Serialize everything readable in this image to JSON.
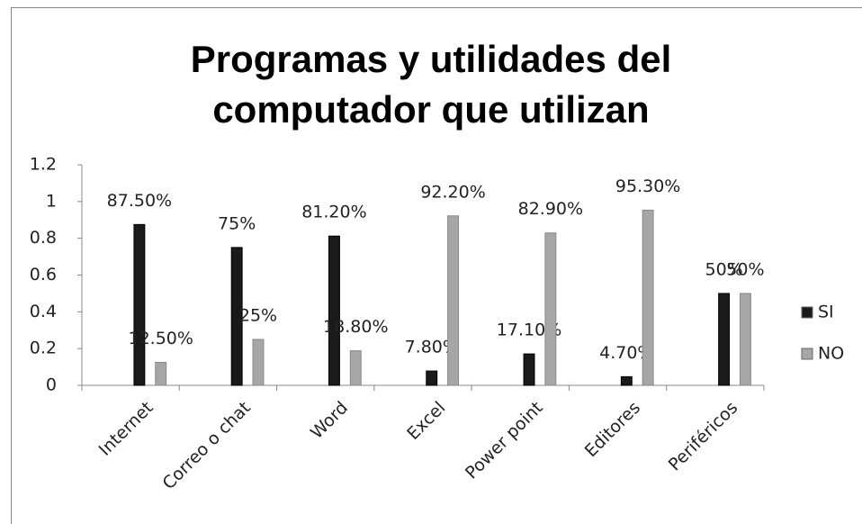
{
  "chart_data": {
    "type": "bar",
    "title": "Programas y utilidades del computador que utilizan",
    "categories": [
      "Internet",
      "Correo o chat",
      "Word",
      "Excel",
      "Power point",
      "Editores",
      "Periféricos"
    ],
    "series": [
      {
        "name": "SI",
        "color": "#1a1a1a",
        "values": [
          0.875,
          0.75,
          0.812,
          0.078,
          0.171,
          0.047,
          0.5
        ],
        "value_labels": [
          "87.50%",
          "75%",
          "81.20%",
          "7.80%",
          "17.10%",
          "4.70%",
          "50%"
        ]
      },
      {
        "name": "NO",
        "color": "#a6a6a6",
        "values": [
          0.125,
          0.25,
          0.188,
          0.922,
          0.829,
          0.953,
          0.5
        ],
        "value_labels": [
          "12.50%",
          "25%",
          "18.80%",
          "92.20%",
          "82.90%",
          "95.30%",
          "50%"
        ]
      }
    ],
    "ylim": [
      0,
      1.2
    ],
    "yticks": [
      0,
      0.2,
      0.4,
      0.6,
      0.8,
      1,
      1.2
    ],
    "grid": false,
    "legend": "right"
  }
}
